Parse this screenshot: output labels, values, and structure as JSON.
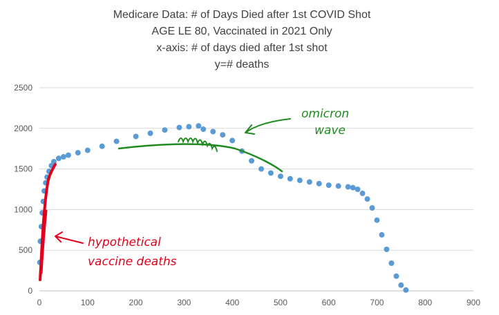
{
  "chart_data": {
    "type": "scatter",
    "title_lines": [
      "Medicare Data: # of Days Died after 1st COVID Shot",
      "AGE LE 80, Vaccinated in 2021 Only",
      "x-axis: # of days died after 1st shot",
      "y=# deaths"
    ],
    "xlabel": "",
    "ylabel": "",
    "xlim": [
      0,
      900
    ],
    "ylim": [
      0,
      2500
    ],
    "x_ticks": [
      0,
      100,
      200,
      300,
      400,
      500,
      600,
      700,
      800,
      900
    ],
    "y_ticks": [
      0,
      500,
      1000,
      1500,
      2000,
      2500
    ],
    "grid": "horizontal",
    "legend": "none",
    "series": [
      {
        "color": "#5b9bd5",
        "points": [
          [
            1,
            350
          ],
          [
            2,
            610
          ],
          [
            4,
            790
          ],
          [
            6,
            960
          ],
          [
            8,
            1100
          ],
          [
            10,
            1230
          ],
          [
            13,
            1330
          ],
          [
            16,
            1400
          ],
          [
            20,
            1470
          ],
          [
            25,
            1540
          ],
          [
            30,
            1590
          ],
          [
            40,
            1630
          ],
          [
            50,
            1650
          ],
          [
            60,
            1670
          ],
          [
            80,
            1700
          ],
          [
            100,
            1730
          ],
          [
            130,
            1780
          ],
          [
            160,
            1840
          ],
          [
            200,
            1900
          ],
          [
            230,
            1940
          ],
          [
            260,
            1980
          ],
          [
            290,
            2010
          ],
          [
            310,
            2020
          ],
          [
            330,
            2030
          ],
          [
            340,
            1990
          ],
          [
            360,
            1960
          ],
          [
            380,
            1920
          ],
          [
            400,
            1850
          ],
          [
            420,
            1720
          ],
          [
            440,
            1600
          ],
          [
            460,
            1500
          ],
          [
            480,
            1450
          ],
          [
            500,
            1410
          ],
          [
            520,
            1380
          ],
          [
            540,
            1360
          ],
          [
            560,
            1340
          ],
          [
            580,
            1320
          ],
          [
            600,
            1300
          ],
          [
            620,
            1290
          ],
          [
            640,
            1280
          ],
          [
            650,
            1270
          ],
          [
            660,
            1250
          ],
          [
            670,
            1200
          ],
          [
            680,
            1130
          ],
          [
            690,
            1020
          ],
          [
            700,
            870
          ],
          [
            710,
            690
          ],
          [
            720,
            510
          ],
          [
            730,
            340
          ],
          [
            740,
            180
          ],
          [
            750,
            70
          ],
          [
            760,
            10
          ]
        ]
      }
    ]
  },
  "annotations": {
    "omicron": "omicron\nwave",
    "omicron_color": "#1f8a1f",
    "hypothetical": "hypothetical\nvaccine deaths",
    "hypothetical_color": "#e3001b"
  }
}
